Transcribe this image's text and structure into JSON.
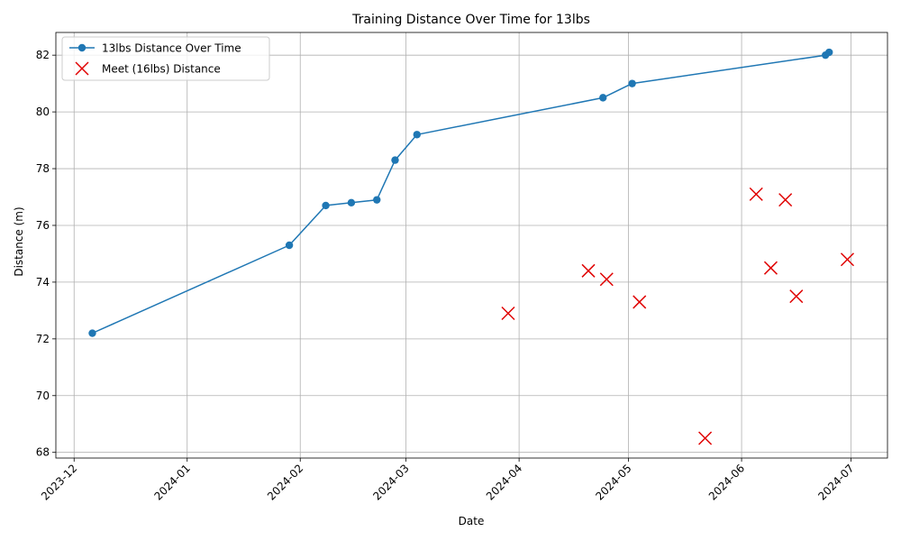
{
  "chart_data": {
    "type": "line",
    "title": "Training Distance Over Time for 13lbs",
    "xlabel": "Date",
    "ylabel": "Distance (m)",
    "xlim": [
      "2023-11-26",
      "2024-07-11"
    ],
    "ylim": [
      67.8,
      82.8
    ],
    "x_ticks": [
      "2023-12-01",
      "2024-01-01",
      "2024-02-01",
      "2024-03-01",
      "2024-04-01",
      "2024-05-01",
      "2024-06-01",
      "2024-07-01"
    ],
    "x_tick_labels": [
      "2023-12",
      "2024-01",
      "2024-02",
      "2024-03",
      "2024-04",
      "2024-05",
      "2024-06",
      "2024-07"
    ],
    "y_ticks": [
      68,
      70,
      72,
      74,
      76,
      78,
      80,
      82
    ],
    "grid": true,
    "legend_position": "top-left",
    "series": [
      {
        "name": "13lbs Distance Over Time",
        "kind": "line",
        "color": "#1f77b4",
        "marker": "circle",
        "points": [
          {
            "x": "2023-12-06",
            "y": 72.2
          },
          {
            "x": "2024-01-29",
            "y": 75.3
          },
          {
            "x": "2024-02-08",
            "y": 76.7
          },
          {
            "x": "2024-02-15",
            "y": 76.8
          },
          {
            "x": "2024-02-22",
            "y": 76.9
          },
          {
            "x": "2024-02-27",
            "y": 78.3
          },
          {
            "x": "2024-03-04",
            "y": 79.2
          },
          {
            "x": "2024-04-24",
            "y": 80.5
          },
          {
            "x": "2024-05-02",
            "y": 81.0
          },
          {
            "x": "2024-06-24",
            "y": 82.0
          },
          {
            "x": "2024-06-25",
            "y": 82.1
          }
        ]
      },
      {
        "name": "Meet (16lbs) Distance",
        "kind": "scatter",
        "color": "#e00000",
        "marker": "x",
        "points": [
          {
            "x": "2024-03-29",
            "y": 72.9
          },
          {
            "x": "2024-04-20",
            "y": 74.4
          },
          {
            "x": "2024-04-25",
            "y": 74.1
          },
          {
            "x": "2024-05-04",
            "y": 73.3
          },
          {
            "x": "2024-05-22",
            "y": 68.5
          },
          {
            "x": "2024-06-05",
            "y": 77.1
          },
          {
            "x": "2024-06-09",
            "y": 74.5
          },
          {
            "x": "2024-06-13",
            "y": 76.9
          },
          {
            "x": "2024-06-16",
            "y": 73.5
          },
          {
            "x": "2024-06-30",
            "y": 74.8
          }
        ]
      }
    ]
  }
}
